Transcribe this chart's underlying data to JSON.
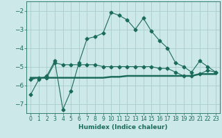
{
  "bg_color": "#cce8e8",
  "grid_color": "#aacccc",
  "line_color": "#1a6b5a",
  "xlabel": "Humidex (Indice chaleur)",
  "xlim": [
    -0.5,
    23.5
  ],
  "ylim": [
    -7.5,
    -1.5
  ],
  "xticks": [
    0,
    1,
    2,
    3,
    4,
    5,
    6,
    7,
    8,
    9,
    10,
    11,
    12,
    13,
    14,
    15,
    16,
    17,
    18,
    19,
    20,
    21,
    22,
    23
  ],
  "yticks": [
    -7,
    -6,
    -5,
    -4,
    -3,
    -2
  ],
  "series1_x": [
    0,
    1,
    2,
    3,
    4,
    5,
    6,
    7,
    8,
    9,
    10,
    11,
    12,
    13,
    14,
    15,
    16,
    17,
    18,
    19,
    20,
    21,
    22,
    23
  ],
  "series1_y": [
    -6.5,
    -5.7,
    -5.5,
    -4.7,
    -7.3,
    -6.3,
    -4.8,
    -3.5,
    -3.4,
    -3.2,
    -2.1,
    -2.25,
    -2.5,
    -3.0,
    -2.4,
    -3.1,
    -3.6,
    -4.0,
    -4.8,
    -5.0,
    -5.3,
    -4.7,
    -5.0,
    -5.3
  ],
  "series2_x": [
    0,
    1,
    2,
    3,
    4,
    5,
    6,
    7,
    8,
    9,
    10,
    11,
    12,
    13,
    14,
    15,
    16,
    17,
    18,
    19,
    20,
    21,
    22,
    23
  ],
  "series2_y": [
    -5.7,
    -5.6,
    -5.6,
    -4.8,
    -4.9,
    -4.9,
    -4.9,
    -4.9,
    -4.9,
    -5.0,
    -5.0,
    -5.0,
    -5.0,
    -5.0,
    -5.0,
    -5.0,
    -5.1,
    -5.1,
    -5.3,
    -5.5,
    -5.5,
    -5.4,
    -5.2,
    -5.3
  ],
  "series3_x": [
    0,
    1,
    2,
    3,
    4,
    5,
    6,
    7,
    8,
    9,
    10,
    11,
    12,
    13,
    14,
    15,
    16,
    17,
    18,
    19,
    20,
    21,
    22,
    23
  ],
  "series3_y": [
    -5.6,
    -5.6,
    -5.6,
    -5.6,
    -5.6,
    -5.6,
    -5.6,
    -5.6,
    -5.6,
    -5.6,
    -5.55,
    -5.55,
    -5.5,
    -5.5,
    -5.5,
    -5.5,
    -5.5,
    -5.5,
    -5.5,
    -5.5,
    -5.5,
    -5.4,
    -5.4,
    -5.4
  ]
}
